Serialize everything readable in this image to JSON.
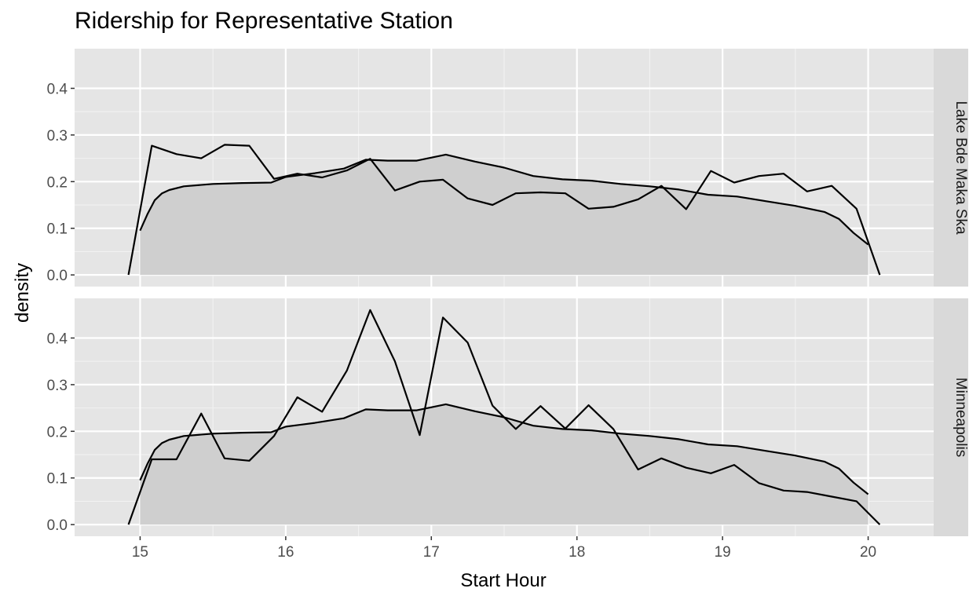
{
  "chart_data": {
    "type": "area",
    "title": "Ridership for Representative Station",
    "xlabel": "Start Hour",
    "ylabel": "density",
    "xlim": [
      14.55,
      20.45
    ],
    "ylim": [
      -0.025,
      0.485
    ],
    "x_ticks": [
      15,
      16,
      17,
      18,
      19,
      20
    ],
    "y_ticks": [
      0.0,
      0.1,
      0.2,
      0.3,
      0.4
    ],
    "y_tick_labels": [
      "0.0",
      "0.1",
      "0.2",
      "0.3",
      "0.4"
    ],
    "grid": true,
    "panels": [
      {
        "label": "Lake Bde Maka Ska",
        "series": [
          {
            "kind": "density-area",
            "x": [
              15.0,
              15.05,
              15.1,
              15.15,
              15.2,
              15.3,
              15.5,
              15.7,
              15.9,
              16.0,
              16.2,
              16.4,
              16.55,
              16.7,
              16.9,
              17.1,
              17.3,
              17.5,
              17.7,
              17.9,
              18.1,
              18.3,
              18.5,
              18.7,
              18.9,
              19.1,
              19.3,
              19.5,
              19.7,
              19.8,
              19.9,
              20.0
            ],
            "y": [
              0.095,
              0.13,
              0.16,
              0.175,
              0.182,
              0.19,
              0.195,
              0.197,
              0.198,
              0.21,
              0.218,
              0.228,
              0.247,
              0.245,
              0.245,
              0.258,
              0.243,
              0.23,
              0.212,
              0.205,
              0.202,
              0.195,
              0.19,
              0.183,
              0.172,
              0.168,
              0.158,
              0.148,
              0.135,
              0.12,
              0.09,
              0.065
            ]
          },
          {
            "kind": "histogram-polygon",
            "x": [
              14.92,
              15.08,
              15.25,
              15.42,
              15.58,
              15.75,
              15.92,
              16.08,
              16.25,
              16.42,
              16.58,
              16.75,
              16.92,
              17.08,
              17.25,
              17.42,
              17.58,
              17.75,
              17.92,
              18.08,
              18.25,
              18.42,
              18.58,
              18.75,
              18.92,
              19.08,
              19.25,
              19.42,
              19.58,
              19.75,
              19.92,
              20.08
            ],
            "y": [
              0.0,
              0.277,
              0.259,
              0.25,
              0.279,
              0.277,
              0.206,
              0.217,
              0.209,
              0.224,
              0.249,
              0.181,
              0.2,
              0.204,
              0.164,
              0.15,
              0.175,
              0.177,
              0.175,
              0.142,
              0.146,
              0.162,
              0.191,
              0.141,
              0.223,
              0.198,
              0.212,
              0.217,
              0.179,
              0.191,
              0.142,
              0.0
            ]
          }
        ]
      },
      {
        "label": "Minneapolis",
        "series": [
          {
            "kind": "density-area",
            "x": [
              15.0,
              15.05,
              15.1,
              15.15,
              15.2,
              15.3,
              15.5,
              15.7,
              15.9,
              16.0,
              16.2,
              16.4,
              16.55,
              16.7,
              16.9,
              17.1,
              17.3,
              17.5,
              17.7,
              17.9,
              18.1,
              18.3,
              18.5,
              18.7,
              18.9,
              19.1,
              19.3,
              19.5,
              19.7,
              19.8,
              19.9,
              20.0
            ],
            "y": [
              0.095,
              0.13,
              0.16,
              0.175,
              0.182,
              0.19,
              0.195,
              0.197,
              0.198,
              0.21,
              0.218,
              0.228,
              0.247,
              0.245,
              0.245,
              0.258,
              0.243,
              0.23,
              0.212,
              0.205,
              0.202,
              0.195,
              0.19,
              0.183,
              0.172,
              0.168,
              0.158,
              0.148,
              0.135,
              0.12,
              0.09,
              0.065
            ]
          },
          {
            "kind": "histogram-polygon",
            "x": [
              14.92,
              15.08,
              15.25,
              15.42,
              15.58,
              15.75,
              15.92,
              16.08,
              16.25,
              16.42,
              16.58,
              16.75,
              16.92,
              17.08,
              17.25,
              17.42,
              17.58,
              17.75,
              17.92,
              18.08,
              18.25,
              18.42,
              18.58,
              18.75,
              18.92,
              19.08,
              19.25,
              19.42,
              19.58,
              19.75,
              19.92,
              20.08
            ],
            "y": [
              0.0,
              0.14,
              0.14,
              0.238,
              0.142,
              0.137,
              0.19,
              0.273,
              0.242,
              0.33,
              0.46,
              0.35,
              0.192,
              0.444,
              0.39,
              0.255,
              0.205,
              0.254,
              0.206,
              0.256,
              0.205,
              0.118,
              0.142,
              0.122,
              0.11,
              0.128,
              0.089,
              0.073,
              0.07,
              0.06,
              0.05,
              0.0
            ]
          }
        ]
      }
    ],
    "colors": {
      "panel_background": "#e5e5e5",
      "grid_major": "#ffffff",
      "grid_minor": "#f2f2f2",
      "strip_background": "#d9d9d9",
      "density_fill": "#cfcfcf",
      "line": "#000000"
    }
  }
}
